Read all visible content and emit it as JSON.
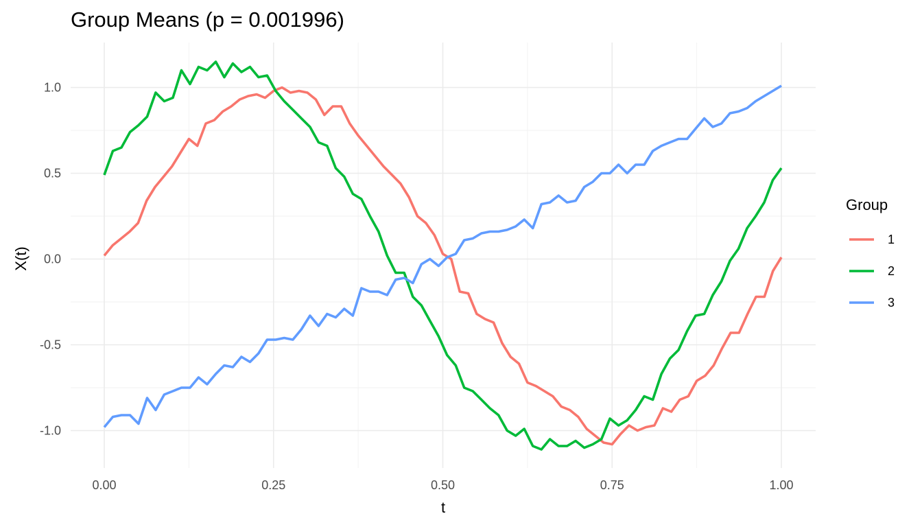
{
  "chart_data": {
    "type": "line",
    "title": "Group Means (p = 0.001996)",
    "xlabel": "t",
    "ylabel": "X(t)",
    "xlim": [
      0,
      1
    ],
    "ylim": [
      -1.2,
      1.25
    ],
    "x_ticks": [
      0,
      0.25,
      0.5,
      0.75,
      1
    ],
    "x_tick_labels": [
      "0.00",
      "0.25",
      "0.50",
      "0.75",
      "1.00"
    ],
    "y_ticks": [
      -1,
      -0.5,
      0,
      0.5,
      1
    ],
    "y_tick_labels": [
      "-1.0",
      "-0.5",
      "0.0",
      "0.5",
      "1.0"
    ],
    "grid": true,
    "legend": {
      "title": "Group",
      "position": "right"
    },
    "x": [
      0,
      0.0101,
      0.0202,
      0.0303,
      0.0404,
      0.0505,
      0.0606,
      0.0707,
      0.0808,
      0.0909,
      0.101,
      0.1111,
      0.1212,
      0.1313,
      0.1414,
      0.1515,
      0.1616,
      0.1717,
      0.1818,
      0.1919,
      0.202,
      0.2121,
      0.2222,
      0.2323,
      0.2424,
      0.2525,
      0.2626,
      0.2727,
      0.2828,
      0.2929,
      0.303,
      0.3131,
      0.3232,
      0.3333,
      0.3434,
      0.3535,
      0.3636,
      0.3737,
      0.3838,
      0.3939,
      0.404,
      0.4141,
      0.4242,
      0.4343,
      0.4444,
      0.4545,
      0.4646,
      0.4747,
      0.4848,
      0.4949,
      0.5051,
      0.5152,
      0.5253,
      0.5354,
      0.5455,
      0.5556,
      0.5657,
      0.5758,
      0.5859,
      0.596,
      0.6061,
      0.6162,
      0.6263,
      0.6364,
      0.6465,
      0.6566,
      0.6667,
      0.6768,
      0.6869,
      0.697,
      0.7071,
      0.7172,
      0.7273,
      0.7374,
      0.7475,
      0.7576,
      0.7677,
      0.7778,
      0.7879,
      0.798,
      0.8081,
      0.8182,
      0.8283,
      0.8384,
      0.8485,
      0.8586,
      0.8687,
      0.8788,
      0.8889,
      0.899,
      0.9091,
      0.9192,
      0.9293,
      0.9394,
      0.9495,
      0.9596,
      0.9697,
      0.9798,
      0.9899,
      1
    ],
    "series": [
      {
        "name": "1",
        "color": "#F8766D",
        "values": [
          0.02,
          0.08,
          0.12,
          0.16,
          0.21,
          0.34,
          0.42,
          0.48,
          0.54,
          0.62,
          0.7,
          0.66,
          0.79,
          0.81,
          0.86,
          0.89,
          0.93,
          0.95,
          0.96,
          0.94,
          0.98,
          1.0,
          0.97,
          0.98,
          0.97,
          0.93,
          0.84,
          0.89,
          0.89,
          0.79,
          0.72,
          0.66,
          0.6,
          0.54,
          0.49,
          0.44,
          0.36,
          0.25,
          0.21,
          0.14,
          0.03,
          0.0,
          -0.19,
          -0.2,
          -0.32,
          -0.35,
          -0.37,
          -0.49,
          -0.57,
          -0.61,
          -0.72,
          -0.74,
          -0.77,
          -0.8,
          -0.86,
          -0.88,
          -0.92,
          -0.99,
          -1.03,
          -1.07,
          -1.08,
          -1.02,
          -0.97,
          -1.0,
          -0.98,
          -0.97,
          -0.87,
          -0.89,
          -0.82,
          -0.8,
          -0.71,
          -0.68,
          -0.62,
          -0.52,
          -0.43,
          -0.43,
          -0.32,
          -0.22,
          -0.22,
          -0.07,
          0.01
        ],
        "x": [
          0,
          0.0125,
          0.025,
          0.0375,
          0.05,
          0.0625,
          0.075,
          0.0875,
          0.1,
          0.1125,
          0.125,
          0.1375,
          0.15,
          0.1625,
          0.175,
          0.1875,
          0.2,
          0.2125,
          0.225,
          0.2375,
          0.25,
          0.2625,
          0.275,
          0.2875,
          0.3,
          0.3125,
          0.325,
          0.3375,
          0.35,
          0.3625,
          0.375,
          0.3875,
          0.4,
          0.4125,
          0.425,
          0.4375,
          0.45,
          0.4625,
          0.475,
          0.4875,
          0.5,
          0.5125,
          0.525,
          0.5375,
          0.55,
          0.5625,
          0.575,
          0.5875,
          0.6,
          0.6125,
          0.625,
          0.6375,
          0.65,
          0.6625,
          0.675,
          0.6875,
          0.7,
          0.7125,
          0.725,
          0.7375,
          0.75,
          0.7625,
          0.775,
          0.7875,
          0.8,
          0.8125,
          0.825,
          0.8375,
          0.85,
          0.8625,
          0.875,
          0.8875,
          0.9,
          0.9125,
          0.925,
          0.9375,
          0.95,
          0.9625,
          0.975,
          0.9875,
          1.0
        ]
      },
      {
        "name": "2",
        "color": "#00BA38",
        "values": [
          0.49,
          0.63,
          0.65,
          0.74,
          0.78,
          0.83,
          0.97,
          0.92,
          0.94,
          1.1,
          1.02,
          1.12,
          1.1,
          1.15,
          1.06,
          1.14,
          1.09,
          1.12,
          1.06,
          1.07,
          0.98,
          0.92,
          0.87,
          0.82,
          0.77,
          0.68,
          0.66,
          0.53,
          0.48,
          0.38,
          0.35,
          0.25,
          0.16,
          0.02,
          -0.08,
          -0.08,
          -0.22,
          -0.27,
          -0.36,
          -0.45,
          -0.56,
          -0.62,
          -0.75,
          -0.77,
          -0.82,
          -0.87,
          -0.91,
          -1.0,
          -1.03,
          -0.99,
          -1.09,
          -1.11,
          -1.05,
          -1.09,
          -1.09,
          -1.06,
          -1.1,
          -1.08,
          -1.05,
          -0.93,
          -0.97,
          -0.94,
          -0.88,
          -0.8,
          -0.82,
          -0.67,
          -0.58,
          -0.53,
          -0.42,
          -0.33,
          -0.32,
          -0.21,
          -0.13,
          -0.01,
          0.06,
          0.18,
          0.25,
          0.33,
          0.46,
          0.53
        ],
        "x": [
          0,
          0.0127,
          0.0253,
          0.038,
          0.0506,
          0.0633,
          0.0759,
          0.0886,
          0.1013,
          0.1139,
          0.1266,
          0.1392,
          0.1519,
          0.1646,
          0.1772,
          0.1899,
          0.2025,
          0.2152,
          0.2278,
          0.2405,
          0.2532,
          0.2658,
          0.2785,
          0.2911,
          0.3038,
          0.3165,
          0.3291,
          0.3418,
          0.3544,
          0.3671,
          0.3797,
          0.3924,
          0.4051,
          0.4177,
          0.4304,
          0.443,
          0.4557,
          0.4684,
          0.481,
          0.4937,
          0.5063,
          0.519,
          0.5316,
          0.5443,
          0.557,
          0.5696,
          0.5823,
          0.5949,
          0.6076,
          0.6203,
          0.6329,
          0.6456,
          0.6582,
          0.6709,
          0.6835,
          0.6962,
          0.7089,
          0.7215,
          0.7342,
          0.7468,
          0.7595,
          0.7722,
          0.7848,
          0.7975,
          0.8101,
          0.8228,
          0.8354,
          0.8481,
          0.8608,
          0.8734,
          0.8861,
          0.8987,
          0.9114,
          0.9241,
          0.9367,
          0.9494,
          0.962,
          0.9747,
          0.9873,
          1.0
        ]
      },
      {
        "name": "3",
        "color": "#619CFF",
        "values": [
          -0.98,
          -0.92,
          -0.91,
          -0.91,
          -0.96,
          -0.81,
          -0.88,
          -0.79,
          -0.77,
          -0.75,
          -0.75,
          -0.69,
          -0.73,
          -0.67,
          -0.62,
          -0.63,
          -0.57,
          -0.6,
          -0.55,
          -0.47,
          -0.47,
          -0.46,
          -0.47,
          -0.41,
          -0.33,
          -0.39,
          -0.32,
          -0.34,
          -0.29,
          -0.33,
          -0.17,
          -0.19,
          -0.19,
          -0.21,
          -0.12,
          -0.11,
          -0.14,
          -0.03,
          -0.0,
          -0.04,
          0.01,
          0.03,
          0.11,
          0.12,
          0.15,
          0.16,
          0.16,
          0.17,
          0.19,
          0.23,
          0.18,
          0.32,
          0.33,
          0.37,
          0.33,
          0.34,
          0.42,
          0.45,
          0.5,
          0.5,
          0.55,
          0.5,
          0.55,
          0.55,
          0.63,
          0.66,
          0.68,
          0.7,
          0.7,
          0.76,
          0.82,
          0.77,
          0.79,
          0.85,
          0.86,
          0.88,
          0.92,
          0.95,
          0.98,
          1.01
        ],
        "x": [
          0,
          0.0127,
          0.0253,
          0.038,
          0.0506,
          0.0633,
          0.0759,
          0.0886,
          0.1013,
          0.1139,
          0.1266,
          0.1392,
          0.1519,
          0.1646,
          0.1772,
          0.1899,
          0.2025,
          0.2152,
          0.2278,
          0.2405,
          0.2532,
          0.2658,
          0.2785,
          0.2911,
          0.3038,
          0.3165,
          0.3291,
          0.3418,
          0.3544,
          0.3671,
          0.3797,
          0.3924,
          0.4051,
          0.4177,
          0.4304,
          0.443,
          0.4557,
          0.4684,
          0.481,
          0.4937,
          0.5063,
          0.519,
          0.5316,
          0.5443,
          0.557,
          0.5696,
          0.5823,
          0.5949,
          0.6076,
          0.6203,
          0.6329,
          0.6456,
          0.6582,
          0.6709,
          0.6835,
          0.6962,
          0.7089,
          0.7215,
          0.7342,
          0.7468,
          0.7595,
          0.7722,
          0.7848,
          0.7975,
          0.8101,
          0.8228,
          0.8354,
          0.8481,
          0.8608,
          0.8734,
          0.8861,
          0.8987,
          0.9114,
          0.9241,
          0.9367,
          0.9494,
          0.962,
          0.9747,
          0.9873,
          1.0
        ]
      }
    ]
  }
}
